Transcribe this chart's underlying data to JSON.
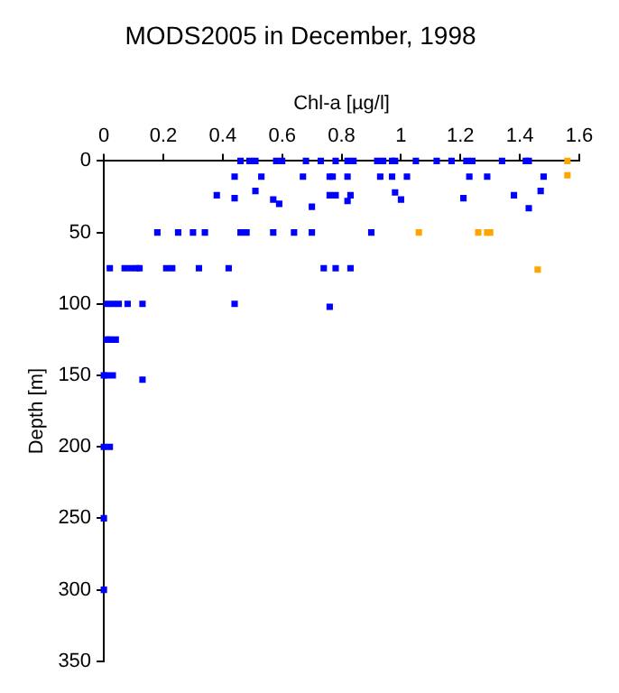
{
  "chart_data": {
    "type": "scatter",
    "title": "MODS2005 in December, 1998",
    "xlabel": "Chl-a [µg/l]",
    "ylabel": "Depth [m]",
    "xlim": [
      0,
      1.6
    ],
    "xticks": [
      0,
      0.2,
      0.4,
      0.6,
      0.8,
      1,
      1.2,
      1.4,
      1.6
    ],
    "ylim": [
      350,
      0
    ],
    "yticks": [
      0,
      50,
      100,
      150,
      200,
      250,
      300,
      350
    ],
    "grid": false,
    "legend": false,
    "marker": "square",
    "series": [
      {
        "color": "#0000ff",
        "x": [
          0.46,
          0.49,
          0.51,
          0.58,
          0.6,
          0.68,
          0.73,
          0.78,
          0.82,
          0.84,
          0.92,
          0.94,
          0.97,
          0.98,
          1.05,
          1.12,
          1.17,
          1.22,
          1.24,
          1.34,
          1.42,
          1.43,
          0.44,
          0.53,
          0.67,
          0.76,
          0.77,
          0.82,
          0.93,
          0.97,
          1.02,
          1.23,
          1.29,
          1.48,
          0.38,
          0.44,
          0.51,
          0.57,
          0.59,
          0.7,
          0.76,
          0.78,
          0.82,
          0.83,
          0.98,
          1.0,
          1.21,
          1.38,
          1.43,
          1.47,
          0.18,
          0.25,
          0.3,
          0.34,
          0.46,
          0.48,
          0.57,
          0.64,
          0.7,
          0.9,
          0.02,
          0.07,
          0.09,
          0.11,
          0.12,
          0.21,
          0.23,
          0.32,
          0.42,
          0.74,
          0.78,
          0.83,
          0.01,
          0.03,
          0.05,
          0.08,
          0.13,
          0.44,
          0.76,
          0.01,
          0.02,
          0.04,
          0.0,
          0.01,
          0.03,
          0.13,
          0.0,
          0.02,
          0.0,
          0.0
        ],
        "values": [
          0,
          0,
          0,
          0,
          0,
          0,
          0,
          0,
          0,
          0,
          0,
          0,
          0,
          0,
          0,
          0,
          0,
          0,
          0,
          0,
          0,
          0,
          11,
          11,
          11,
          11,
          11,
          11,
          11,
          11,
          11,
          11,
          11,
          11,
          24,
          26,
          21,
          27,
          30,
          32,
          24,
          24,
          28,
          24,
          22,
          27,
          26,
          24,
          33,
          21,
          50,
          50,
          50,
          50,
          50,
          50,
          50,
          50,
          50,
          50,
          75,
          75,
          75,
          75,
          75,
          75,
          75,
          75,
          75,
          75,
          75,
          75,
          100,
          100,
          100,
          100,
          100,
          100,
          102,
          125,
          125,
          125,
          150,
          150,
          150,
          153,
          200,
          200,
          250,
          300
        ]
      },
      {
        "color": "#ffa500",
        "x": [
          1.56,
          1.56,
          1.06,
          1.26,
          1.29,
          1.3,
          1.46
        ],
        "values": [
          0,
          10,
          50,
          50,
          50,
          50,
          76
        ]
      }
    ]
  }
}
